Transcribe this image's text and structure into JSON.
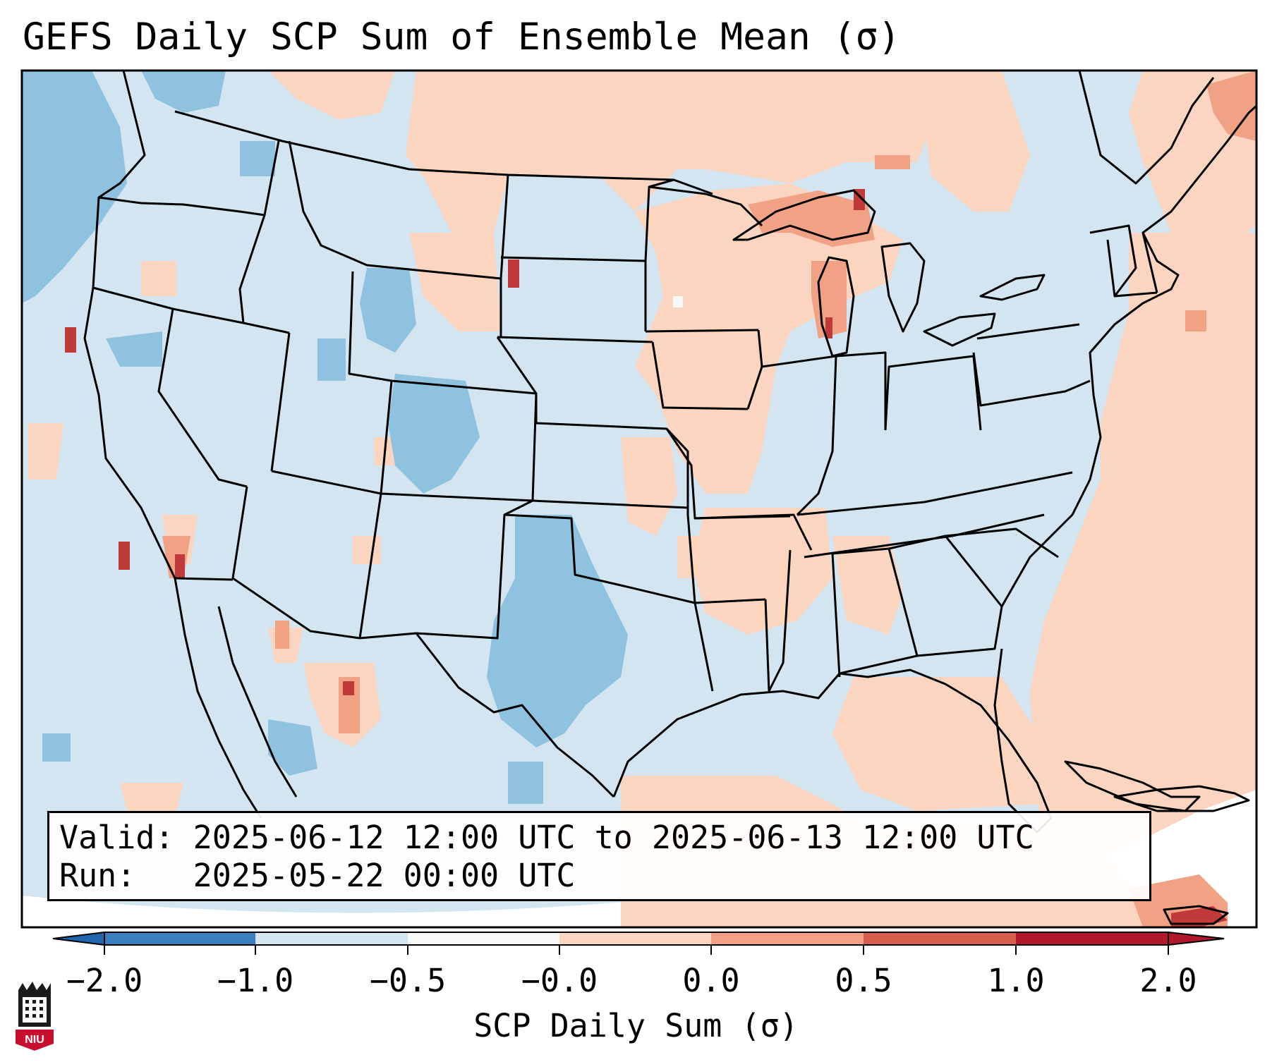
{
  "title": "GEFS Daily SCP Sum of Ensemble Mean (σ)",
  "info": {
    "valid_line": "Valid: 2025-06-12 12:00 UTC to 2025-06-13 12:00 UTC",
    "run_line": "Run:   2025-05-22 00:00 UTC"
  },
  "colorbar": {
    "label": "SCP Daily Sum (σ)",
    "ticks": [
      "−2.0",
      "−1.0",
      "−0.5",
      "−0.0",
      "0.0",
      "0.5",
      "1.0",
      "2.0"
    ],
    "bin_colors": [
      "#3b7fbf",
      "#8fc2df",
      "#d2e5f1",
      "#f8f8f8",
      "#fbd5c0",
      "#f2a284",
      "#d6604d",
      "#b2182b"
    ],
    "extend_low_color": "#2166ac",
    "extend_high_color": "#b2182b"
  },
  "colors": {
    "background_field": "#d2e5f1",
    "positive_field": "#fbd5c0",
    "moderate_negative": "#8fc2df",
    "moderate_positive": "#f2a284",
    "strong_positive": "#c03a3a",
    "borders": "#000000"
  },
  "logo": {
    "text": "NIU",
    "color": "#c8102e"
  }
}
